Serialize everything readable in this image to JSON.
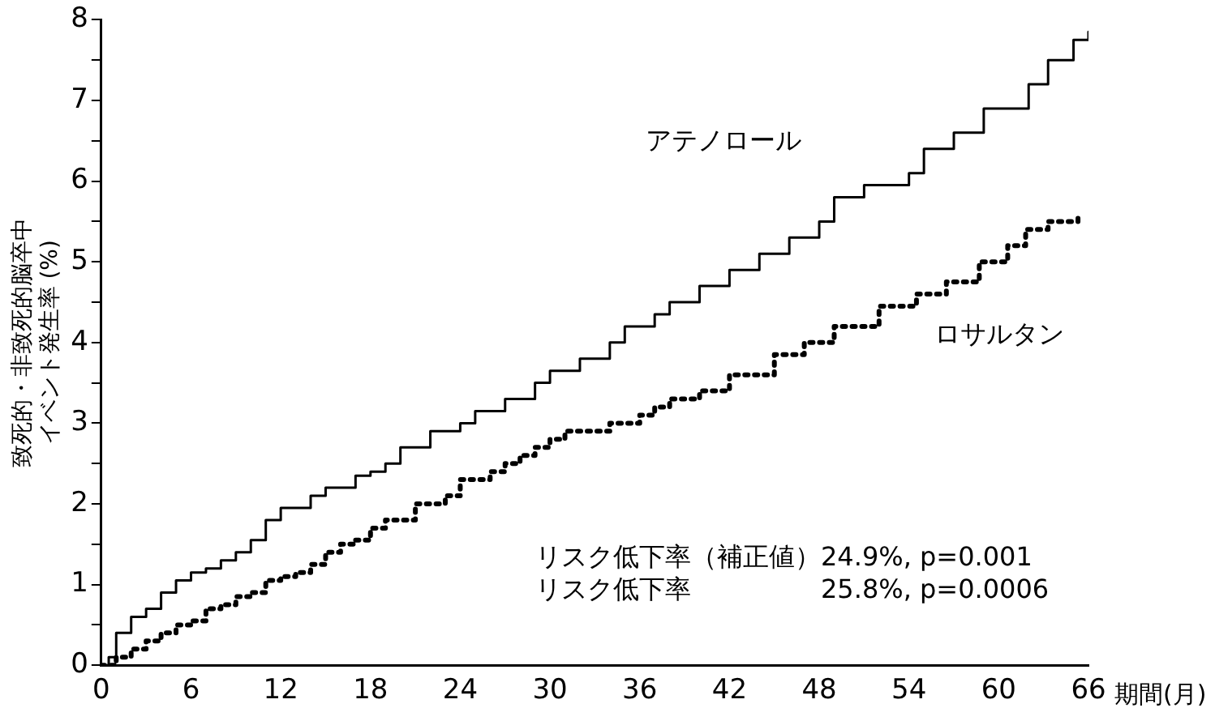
{
  "chart_data": {
    "type": "step",
    "ylabel": "致死的・非致死的脳卒中イベント発生率 (%)",
    "xlabel": "期間(月)",
    "xlim": [
      0,
      66
    ],
    "xticks": [
      0,
      6,
      12,
      18,
      24,
      30,
      36,
      42,
      48,
      54,
      60,
      66
    ],
    "ylim": [
      0,
      8
    ],
    "yticks": [
      0,
      {
        "value": 0.5,
        "label": null
      },
      1,
      {
        "value": 1.5,
        "label": null
      },
      2,
      {
        "value": 2.5,
        "label": null
      },
      3,
      {
        "value": 3.5,
        "label": null
      },
      4,
      {
        "value": 4.5,
        "label": null
      },
      5,
      {
        "value": 5.5,
        "label": null
      },
      6,
      {
        "value": 6.5,
        "label": null
      },
      7,
      {
        "value": 7.5,
        "label": null
      },
      8
    ],
    "grid": false,
    "legend": false,
    "series": [
      {
        "name": "アテノロール",
        "color": "#000000",
        "line_style": "solid",
        "x": [
          0,
          0.5,
          1,
          2,
          3,
          4,
          5,
          6,
          7,
          8,
          9,
          10,
          11,
          12,
          14,
          15,
          17,
          18,
          19,
          20,
          22,
          24,
          25,
          27,
          29,
          30,
          32,
          34,
          35,
          37,
          38,
          40,
          42,
          44,
          46,
          48,
          49,
          51,
          54,
          55,
          57,
          59,
          62,
          63.3,
          65,
          66
        ],
        "values": [
          0,
          0.1,
          0.4,
          0.6,
          0.7,
          0.9,
          1.05,
          1.15,
          1.2,
          1.3,
          1.4,
          1.55,
          1.8,
          1.95,
          2.1,
          2.2,
          2.35,
          2.4,
          2.5,
          2.7,
          2.9,
          3.0,
          3.15,
          3.3,
          3.5,
          3.65,
          3.8,
          4.0,
          4.2,
          4.35,
          4.5,
          4.7,
          4.9,
          5.1,
          5.3,
          5.5,
          5.8,
          5.95,
          6.1,
          6.4,
          6.6,
          6.9,
          7.2,
          7.5,
          7.75,
          7.85
        ]
      },
      {
        "name": "ロサルタン",
        "color": "#000000",
        "line_style": "dotted",
        "x": [
          0,
          1,
          2,
          3,
          4,
          5,
          6,
          7,
          8,
          9,
          10,
          11,
          12,
          13,
          14,
          15,
          16,
          17,
          18,
          19,
          21,
          23,
          24,
          26,
          27,
          28,
          29,
          30,
          31,
          33,
          34,
          36,
          37,
          38,
          40,
          42,
          45,
          47,
          49,
          52,
          54.5,
          56.5,
          58.7,
          60.6,
          61.8,
          63.3,
          65.3
        ],
        "values": [
          0,
          0.1,
          0.2,
          0.3,
          0.4,
          0.5,
          0.55,
          0.7,
          0.75,
          0.85,
          0.9,
          1.05,
          1.1,
          1.15,
          1.25,
          1.4,
          1.5,
          1.55,
          1.7,
          1.8,
          2.0,
          2.1,
          2.3,
          2.4,
          2.5,
          2.6,
          2.7,
          2.8,
          2.9,
          2.9,
          3.0,
          3.1,
          3.2,
          3.3,
          3.4,
          3.6,
          3.85,
          4.0,
          4.2,
          4.45,
          4.6,
          4.75,
          5.0,
          5.2,
          5.4,
          5.5,
          5.6
        ]
      }
    ],
    "annotations": [
      "リスク低下率（補正値）24.9%, p=0.001",
      "リスク低下率　　　　　25.8%, p=0.0006"
    ]
  }
}
